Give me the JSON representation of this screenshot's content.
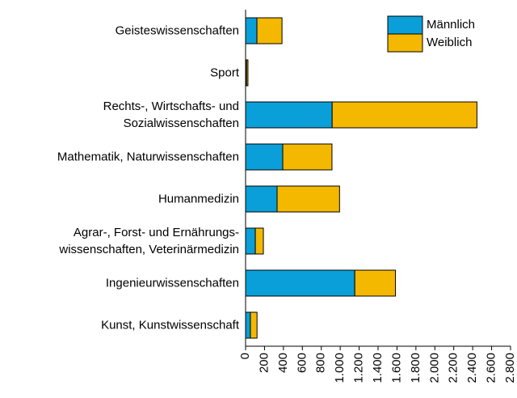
{
  "chart_data": {
    "type": "stacked-bar-horizontal",
    "categories": [
      "Geisteswissenschaften",
      "Sport",
      "Rechts-, Wirtschafts- und\nSozialwissenschaften",
      "Mathematik, Naturwissenschaften",
      "Humanmedizin",
      "Agrar-, Forst- und Ernährungs-\nwissenschaften, Veterinärmedizin",
      "Ingenieurwissenschaften",
      "Kunst, Kunstwissenschaft"
    ],
    "series": [
      {
        "name": "Männlich",
        "color": "#0a9fd8",
        "values": [
          120,
          10,
          915,
          393,
          333,
          103,
          1154,
          51
        ]
      },
      {
        "name": "Weiblich",
        "color": "#f5b800",
        "values": [
          265,
          15,
          1530,
          520,
          660,
          85,
          430,
          70
        ]
      }
    ],
    "xlim": [
      0,
      2800
    ],
    "xticks": [
      0,
      200,
      400,
      600,
      800,
      {
        "value": 1000,
        "label": "1.000"
      },
      {
        "value": 1200,
        "label": "1.200"
      },
      {
        "value": 1400,
        "label": "1.400"
      },
      {
        "value": 1600,
        "label": "1.600"
      },
      {
        "value": 1800,
        "label": "1.800"
      },
      {
        "value": 2000,
        "label": "2.000"
      },
      {
        "value": 2200,
        "label": "2.200"
      },
      {
        "value": 2400,
        "label": "2.400"
      },
      {
        "value": 2600,
        "label": "2.600"
      },
      {
        "value": 2800,
        "label": "2.800"
      }
    ],
    "legend": "upper-right"
  }
}
